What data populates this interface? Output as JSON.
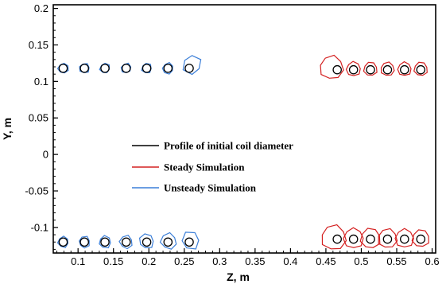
{
  "chart_data": {
    "type": "scatter",
    "title": "",
    "xlabel": "Z, m",
    "ylabel": "Y, m",
    "xlim": [
      0.065,
      0.605
    ],
    "ylim": [
      -0.135,
      0.205
    ],
    "xticks": [
      0.1,
      0.15,
      0.2,
      0.25,
      0.3,
      0.35,
      0.4,
      0.45,
      0.5,
      0.55,
      0.6
    ],
    "xtick_labels": [
      "0.1",
      "0.15",
      "0.2",
      "0.25",
      "0.3",
      "0.35",
      "0.4",
      "0.45",
      "0.5",
      "0.55",
      "0.6"
    ],
    "yticks": [
      -0.1,
      -0.05,
      0,
      0.05,
      0.1,
      0.15,
      0.2
    ],
    "ytick_labels": [
      "-0.1",
      "-0.05",
      "0",
      "0.05",
      "0.1",
      "0.15",
      "0.2"
    ],
    "xminor_step": 0.01,
    "yminor_step": 0.01,
    "grid": false,
    "legend_position": "center-left",
    "series": [
      {
        "name": "Profile of initial coil diameter",
        "color": "#000000",
        "shape": "circle",
        "size_m": 0.0115,
        "points": [
          [
            0.079,
            0.118
          ],
          [
            0.109,
            0.118
          ],
          [
            0.138,
            0.118
          ],
          [
            0.168,
            0.118
          ],
          [
            0.197,
            0.118
          ],
          [
            0.227,
            0.118
          ],
          [
            0.257,
            0.118
          ],
          [
            0.079,
            -0.12
          ],
          [
            0.109,
            -0.12
          ],
          [
            0.138,
            -0.12
          ],
          [
            0.168,
            -0.12
          ],
          [
            0.197,
            -0.12
          ],
          [
            0.227,
            -0.12
          ],
          [
            0.257,
            -0.12
          ],
          [
            0.466,
            0.116
          ],
          [
            0.489,
            0.116
          ],
          [
            0.513,
            0.116
          ],
          [
            0.537,
            0.116
          ],
          [
            0.561,
            0.116
          ],
          [
            0.584,
            0.116
          ],
          [
            0.466,
            -0.116
          ],
          [
            0.489,
            -0.116
          ],
          [
            0.513,
            -0.116
          ],
          [
            0.537,
            -0.116
          ],
          [
            0.561,
            -0.116
          ],
          [
            0.584,
            -0.116
          ]
        ]
      },
      {
        "name": "Steady Simulation",
        "color": "#d42020",
        "shape": "deformed-profile",
        "points": [
          {
            "z": 0.458,
            "y": 0.119,
            "size_m": 0.033
          },
          {
            "z": 0.489,
            "y": 0.117,
            "size_m": 0.02
          },
          {
            "z": 0.513,
            "y": 0.117,
            "size_m": 0.019
          },
          {
            "z": 0.537,
            "y": 0.117,
            "size_m": 0.019
          },
          {
            "z": 0.561,
            "y": 0.117,
            "size_m": 0.019
          },
          {
            "z": 0.584,
            "y": 0.117,
            "size_m": 0.019
          },
          {
            "z": 0.461,
            "y": -0.114,
            "size_m": 0.035
          },
          {
            "z": 0.489,
            "y": -0.115,
            "size_m": 0.028
          },
          {
            "z": 0.513,
            "y": -0.115,
            "size_m": 0.028
          },
          {
            "z": 0.537,
            "y": -0.115,
            "size_m": 0.027
          },
          {
            "z": 0.561,
            "y": -0.115,
            "size_m": 0.026
          },
          {
            "z": 0.584,
            "y": -0.115,
            "size_m": 0.024
          }
        ]
      },
      {
        "name": "Unsteady Simulation",
        "color": "#3c7fd8",
        "shape": "deformed-profile",
        "points": [
          {
            "z": 0.079,
            "y": 0.118,
            "size_m": 0.014
          },
          {
            "z": 0.109,
            "y": 0.118,
            "size_m": 0.014
          },
          {
            "z": 0.138,
            "y": 0.118,
            "size_m": 0.014
          },
          {
            "z": 0.168,
            "y": 0.118,
            "size_m": 0.014
          },
          {
            "z": 0.197,
            "y": 0.118,
            "size_m": 0.014
          },
          {
            "z": 0.227,
            "y": 0.118,
            "size_m": 0.015
          },
          {
            "z": 0.261,
            "y": 0.123,
            "size_m": 0.026
          },
          {
            "z": 0.079,
            "y": -0.12,
            "size_m": 0.015
          },
          {
            "z": 0.109,
            "y": -0.12,
            "size_m": 0.016
          },
          {
            "z": 0.138,
            "y": -0.12,
            "size_m": 0.017
          },
          {
            "z": 0.168,
            "y": -0.12,
            "size_m": 0.018
          },
          {
            "z": 0.197,
            "y": -0.119,
            "size_m": 0.02
          },
          {
            "z": 0.228,
            "y": -0.119,
            "size_m": 0.022
          },
          {
            "z": 0.259,
            "y": -0.118,
            "size_m": 0.025
          }
        ]
      }
    ]
  }
}
